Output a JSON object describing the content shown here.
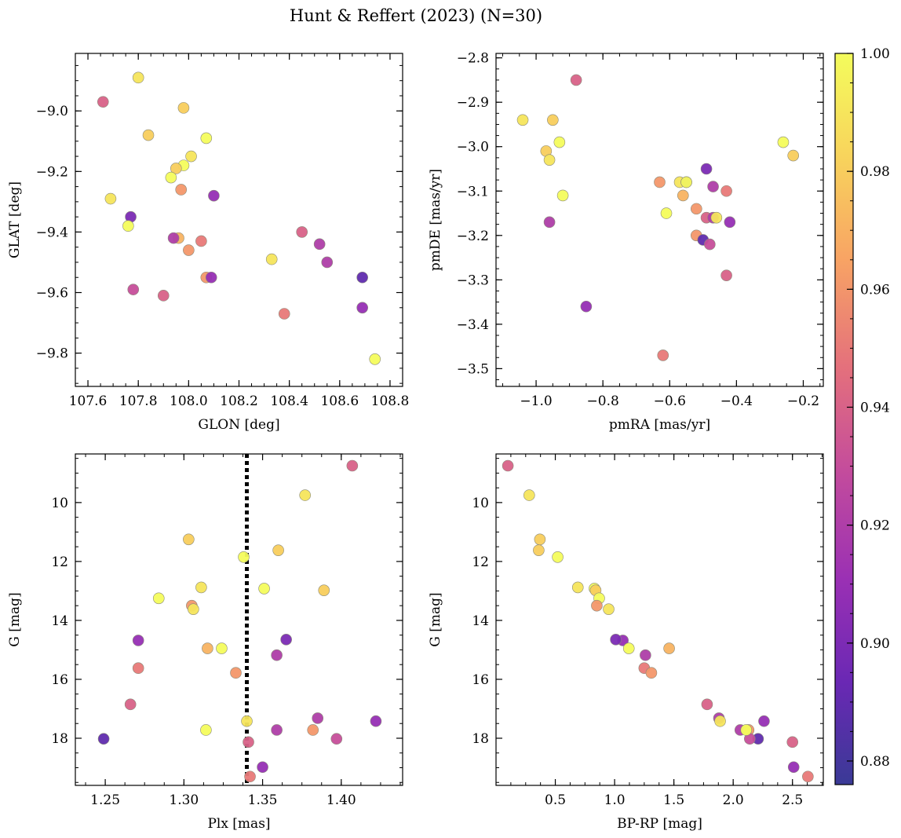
{
  "figure": {
    "title": "Hunt & Reffert (2023) (N=30)"
  },
  "chart_data": [
    {
      "type": "scatter",
      "xlabel": "GLON [deg]",
      "ylabel": "GLAT [deg]",
      "xlim": [
        107.55,
        108.85
      ],
      "ylim": [
        -9.91,
        -8.81
      ],
      "x_ticks": [
        107.6,
        107.8,
        108.0,
        108.2,
        108.4,
        108.6,
        108.8
      ],
      "x_tick_labels": [
        "107.6",
        "107.8",
        "108.0",
        "108.2",
        "108.4",
        "108.6",
        "108.8"
      ],
      "y_ticks": [
        -9.8,
        -9.6,
        -9.4,
        -9.2,
        -9.0
      ],
      "y_tick_labels": [
        "−9.8",
        "−9.6",
        "−9.4",
        "−9.2",
        "−9.0"
      ],
      "y_inverted": false,
      "x_column": "glon",
      "y_column": "glat"
    },
    {
      "type": "scatter",
      "xlabel": "pmRA [mas/yr]",
      "ylabel": "pmDE [mas/yr]",
      "xlim": [
        -1.12,
        -0.14
      ],
      "ylim": [
        -3.54,
        -2.79
      ],
      "x_ticks": [
        -1.0,
        -0.8,
        -0.6,
        -0.4,
        -0.2
      ],
      "x_tick_labels": [
        "−1.0",
        "−0.8",
        "−0.6",
        "−0.4",
        "−0.2"
      ],
      "y_ticks": [
        -3.5,
        -3.4,
        -3.3,
        -3.2,
        -3.1,
        -3.0,
        -2.9,
        -2.8
      ],
      "y_tick_labels": [
        "−3.5",
        "−3.4",
        "−3.3",
        "−3.2",
        "−3.1",
        "−3.0",
        "−2.9",
        "−2.8"
      ],
      "y_inverted": false,
      "x_column": "pmra",
      "y_column": "pmde"
    },
    {
      "type": "scatter",
      "xlabel": "Plx [mas]",
      "ylabel": "G [mag]",
      "xlim": [
        1.231,
        1.439
      ],
      "ylim": [
        19.6,
        8.35
      ],
      "x_ticks": [
        1.25,
        1.3,
        1.35,
        1.4
      ],
      "x_tick_labels": [
        "1.25",
        "1.30",
        "1.35",
        "1.40"
      ],
      "y_ticks": [
        10,
        12,
        14,
        16,
        18
      ],
      "y_tick_labels": [
        "10",
        "12",
        "14",
        "16",
        "18"
      ],
      "y_inverted": true,
      "vline": 1.34,
      "x_column": "plx",
      "y_column": "g"
    },
    {
      "type": "scatter",
      "xlabel": "BP-RP [mag]",
      "ylabel": "G [mag]",
      "xlim": [
        0.0,
        2.76
      ],
      "ylim": [
        19.6,
        8.35
      ],
      "x_ticks": [
        0.5,
        1.0,
        1.5,
        2.0,
        2.5
      ],
      "x_tick_labels": [
        "0.5",
        "1.0",
        "1.5",
        "2.0",
        "2.5"
      ],
      "y_ticks": [
        10,
        12,
        14,
        16,
        18
      ],
      "y_tick_labels": [
        "10",
        "12",
        "14",
        "16",
        "18"
      ],
      "y_inverted": true,
      "x_column": "bprp",
      "y_column": "g"
    }
  ],
  "stars": {
    "glon": [
      107.66,
      107.8,
      107.98,
      107.84,
      108.07,
      108.01,
      107.98,
      107.95,
      107.93,
      107.97,
      107.69,
      108.1,
      107.77,
      107.76,
      107.96,
      107.94,
      108.05,
      108.0,
      108.45,
      108.52,
      108.33,
      108.55,
      108.07,
      108.09,
      108.69,
      107.78,
      107.9,
      108.69,
      108.38,
      108.74
    ],
    "glat": [
      -8.97,
      -8.89,
      -8.99,
      -9.08,
      -9.09,
      -9.15,
      -9.18,
      -9.19,
      -9.22,
      -9.26,
      -9.29,
      -9.28,
      -9.35,
      -9.38,
      -9.42,
      -9.42,
      -9.43,
      -9.46,
      -9.4,
      -9.44,
      -9.49,
      -9.5,
      -9.55,
      -9.55,
      -9.55,
      -9.59,
      -9.61,
      -9.65,
      -9.67,
      -9.82
    ],
    "pmra": [
      -0.88,
      -1.04,
      -0.95,
      -0.97,
      -0.93,
      -0.96,
      -0.26,
      -0.23,
      -0.92,
      -0.63,
      -0.57,
      -0.55,
      -0.49,
      -0.61,
      -0.56,
      -0.47,
      -0.43,
      -0.52,
      -0.49,
      -0.47,
      -0.46,
      -0.96,
      -0.52,
      -0.42,
      -0.5,
      -0.48,
      -0.43,
      -0.85,
      -0.62,
      -0.55
    ],
    "pmde": [
      -2.85,
      -2.94,
      -2.94,
      -3.01,
      -2.99,
      -3.03,
      -2.99,
      -3.02,
      -3.11,
      -3.08,
      -3.08,
      -3.08,
      -3.05,
      -3.15,
      -3.11,
      -3.09,
      -3.1,
      -3.14,
      -3.16,
      -3.16,
      -3.16,
      -3.17,
      -3.2,
      -3.17,
      -3.21,
      -3.22,
      -3.29,
      -3.36,
      -3.47,
      -3.08
    ],
    "plx": [
      1.407,
      1.377,
      1.303,
      1.36,
      1.338,
      1.311,
      1.351,
      1.389,
      1.284,
      1.305,
      1.306,
      1.271,
      1.365,
      1.324,
      1.315,
      1.359,
      1.271,
      1.333,
      1.266,
      1.385,
      1.34,
      1.359,
      1.382,
      1.422,
      1.249,
      1.397,
      1.341,
      1.35,
      1.342,
      1.314
    ],
    "bprp": [
      0.1,
      0.28,
      0.37,
      0.36,
      0.52,
      0.69,
      0.83,
      0.84,
      0.87,
      0.85,
      0.95,
      1.07,
      1.01,
      1.12,
      1.46,
      1.26,
      1.25,
      1.31,
      1.78,
      1.88,
      1.89,
      2.06,
      2.13,
      2.26,
      2.21,
      2.14,
      2.5,
      2.51,
      2.63,
      2.11
    ],
    "g": [
      8.75,
      9.75,
      11.25,
      11.62,
      11.85,
      12.88,
      12.92,
      12.98,
      13.25,
      13.5,
      13.62,
      14.68,
      14.65,
      14.95,
      14.95,
      15.18,
      15.62,
      15.78,
      16.85,
      17.32,
      17.42,
      17.72,
      17.72,
      17.42,
      18.02,
      18.02,
      18.13,
      18.98,
      19.3,
      17.72
    ],
    "prob": [
      0.94,
      0.99,
      0.98,
      0.98,
      1.0,
      0.99,
      1.0,
      0.98,
      1.0,
      0.96,
      0.99,
      0.91,
      0.9,
      1.0,
      0.97,
      0.92,
      0.95,
      0.96,
      0.94,
      0.92,
      0.99,
      0.92,
      0.96,
      0.91,
      0.89,
      0.93,
      0.94,
      0.91,
      0.95,
      1.0
    ]
  },
  "colorbar": {
    "min": 0.876,
    "max": 1.0,
    "ticks": [
      0.88,
      0.9,
      0.92,
      0.94,
      0.96,
      0.98,
      1.0
    ],
    "tick_labels": [
      "0.88",
      "0.90",
      "0.92",
      "0.94",
      "0.96",
      "0.98",
      "1.00"
    ],
    "colormap": "plasma",
    "gradient_colors": [
      "#3a3a96",
      "#6a28b4",
      "#9a30b4",
      "#c44c9c",
      "#e4707c",
      "#f8a464",
      "#f8d45c",
      "#f4fc5c"
    ]
  }
}
